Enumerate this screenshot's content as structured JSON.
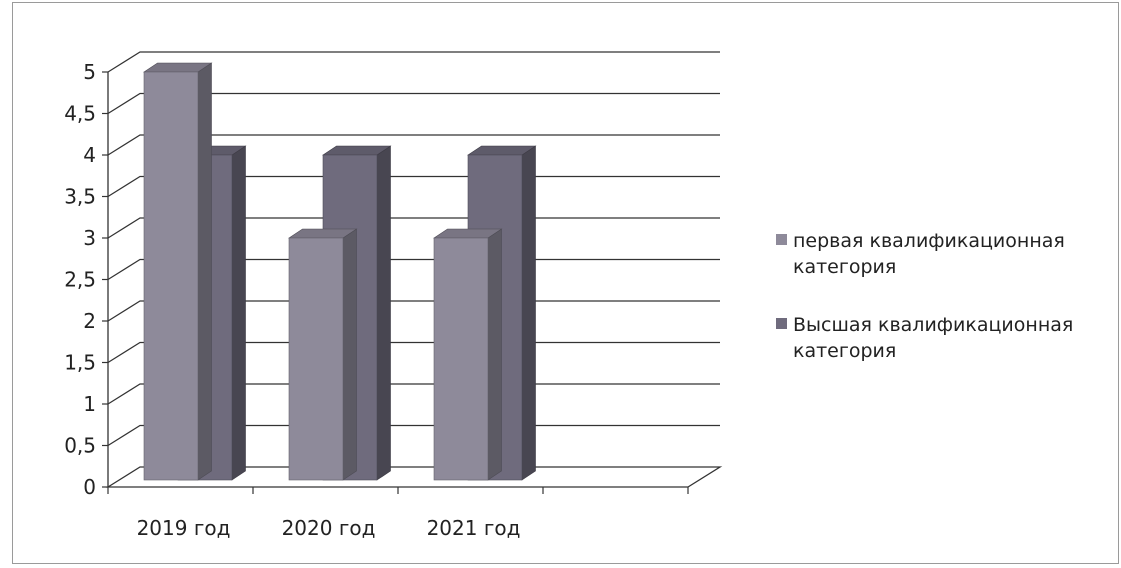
{
  "chart_data": {
    "type": "bar",
    "three_d": true,
    "categories": [
      "2019 год",
      "2020 год",
      "2021 год"
    ],
    "series": [
      {
        "name": "первая квалификационная категория",
        "values": [
          5,
          3,
          3
        ],
        "color": "#8e8a9a"
      },
      {
        "name": "Высшая квалификационная категория",
        "values": [
          4,
          4,
          4
        ],
        "color": "#6f6b7d"
      }
    ],
    "ylim": [
      0,
      5
    ],
    "yticks": [
      "0",
      "0,5",
      "1",
      "1,5",
      "2",
      "2,5",
      "3",
      "3,5",
      "4",
      "4,5",
      "5"
    ],
    "grid": true,
    "legend_position": "right",
    "legend": {
      "entries": [
        {
          "lines": [
            "первая квалификационная",
            "категория"
          ]
        },
        {
          "lines": [
            "Высшая квалификационная",
            "категория"
          ]
        }
      ]
    }
  }
}
